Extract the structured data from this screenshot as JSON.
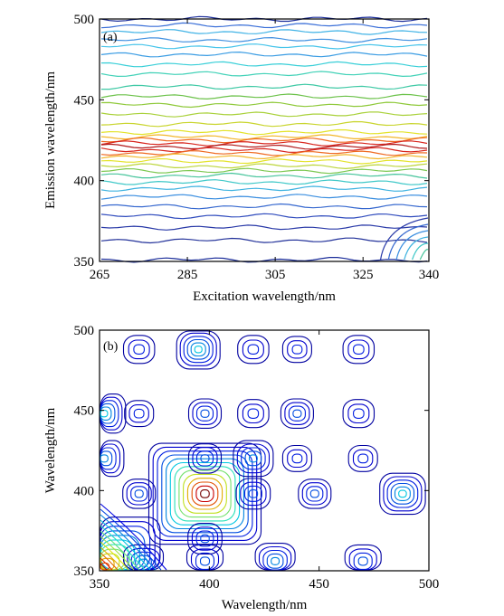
{
  "chart_data": [
    {
      "type": "contour",
      "panel_label": "(a)",
      "xlabel": "Excitation wavelength/nm",
      "ylabel": "Emission wavelength/nm",
      "xlim": [
        265,
        340
      ],
      "ylim": [
        350,
        500
      ],
      "xticks": [
        265,
        285,
        305,
        325,
        340
      ],
      "yticks": [
        350,
        400,
        450,
        500
      ],
      "colormap": "jet",
      "bands": [
        {
          "emission": 500,
          "level": 0.05,
          "color": "#1b2d9a"
        },
        {
          "emission": 496,
          "level": 0.12,
          "color": "#3a6fd8"
        },
        {
          "emission": 492,
          "level": 0.18,
          "color": "#41b3e6"
        },
        {
          "emission": 487,
          "level": 0.15,
          "color": "#3f8fe0"
        },
        {
          "emission": 483,
          "level": 0.22,
          "color": "#46c4ea"
        },
        {
          "emission": 478,
          "level": 0.18,
          "color": "#3a9ce3"
        },
        {
          "emission": 472,
          "level": 0.25,
          "color": "#39cfd8"
        },
        {
          "emission": 466,
          "level": 0.28,
          "color": "#43d2b8"
        },
        {
          "emission": 458,
          "level": 0.32,
          "color": "#3fc9a5"
        },
        {
          "emission": 452,
          "level": 0.38,
          "color": "#6cc24a"
        },
        {
          "emission": 447,
          "level": 0.45,
          "color": "#8fc93a"
        },
        {
          "emission": 441,
          "level": 0.48,
          "color": "#a9d13a"
        },
        {
          "emission": 435,
          "level": 0.55,
          "color": "#c9d52e"
        },
        {
          "emission": 430,
          "level": 0.62,
          "color": "#e3e32a"
        },
        {
          "emission": 427,
          "level": 0.72,
          "color": "#f2b62a"
        },
        {
          "emission": 425,
          "level": 0.85,
          "color": "#ef6a22"
        },
        {
          "emission": 423,
          "level": 0.95,
          "color": "#d8251d"
        },
        {
          "emission": 421,
          "level": 1.0,
          "color": "#b0181a"
        },
        {
          "emission": 419,
          "level": 0.95,
          "color": "#d8251d"
        },
        {
          "emission": 417,
          "level": 0.85,
          "color": "#ef6a22"
        },
        {
          "emission": 415,
          "level": 0.72,
          "color": "#f2b62a"
        },
        {
          "emission": 412,
          "level": 0.62,
          "color": "#e3e32a"
        },
        {
          "emission": 409,
          "level": 0.55,
          "color": "#bcd53a"
        },
        {
          "emission": 406,
          "level": 0.45,
          "color": "#7cc851"
        },
        {
          "emission": 403,
          "level": 0.38,
          "color": "#45c49a"
        },
        {
          "emission": 399,
          "level": 0.32,
          "color": "#3fc8c8"
        },
        {
          "emission": 395,
          "level": 0.28,
          "color": "#3fb3e0"
        },
        {
          "emission": 390,
          "level": 0.22,
          "color": "#3a8ee0"
        },
        {
          "emission": 384,
          "level": 0.18,
          "color": "#3668cf"
        },
        {
          "emission": 378,
          "level": 0.14,
          "color": "#2f4bbd"
        },
        {
          "emission": 371,
          "level": 0.1,
          "color": "#2a3aa8"
        },
        {
          "emission": 363,
          "level": 0.07,
          "color": "#23329a"
        },
        {
          "emission": 351,
          "level": 0.05,
          "color": "#1b2d9a"
        }
      ]
    },
    {
      "type": "contour",
      "panel_label": "(b)",
      "xlabel": "Wavelength/nm",
      "ylabel": "Wavelength/nm",
      "xlim": [
        350,
        500
      ],
      "ylim": [
        350,
        500
      ],
      "xticks": [
        350,
        400,
        450,
        500
      ],
      "yticks": [
        350,
        400,
        450,
        500
      ],
      "colormap": "jet",
      "peaks": [
        {
          "x": 398,
          "y": 398,
          "level": 1.0
        },
        {
          "x": 352,
          "y": 352,
          "level": 0.85
        },
        {
          "x": 395,
          "y": 488,
          "level": 0.35
        },
        {
          "x": 352,
          "y": 448,
          "level": 0.35
        },
        {
          "x": 352,
          "y": 420,
          "level": 0.3
        },
        {
          "x": 488,
          "y": 398,
          "level": 0.38
        },
        {
          "x": 420,
          "y": 420,
          "level": 0.3
        },
        {
          "x": 398,
          "y": 420,
          "level": 0.2
        },
        {
          "x": 398,
          "y": 448,
          "level": 0.2
        },
        {
          "x": 368,
          "y": 398,
          "level": 0.2
        },
        {
          "x": 420,
          "y": 398,
          "level": 0.22
        },
        {
          "x": 448,
          "y": 398,
          "level": 0.2
        },
        {
          "x": 430,
          "y": 356,
          "level": 0.3
        },
        {
          "x": 370,
          "y": 355,
          "level": 0.3
        },
        {
          "x": 398,
          "y": 356,
          "level": 0.25
        },
        {
          "x": 470,
          "y": 356,
          "level": 0.25
        },
        {
          "x": 440,
          "y": 448,
          "level": 0.2
        },
        {
          "x": 468,
          "y": 448,
          "level": 0.18
        },
        {
          "x": 468,
          "y": 488,
          "level": 0.18
        },
        {
          "x": 440,
          "y": 488,
          "level": 0.15
        },
        {
          "x": 368,
          "y": 488,
          "level": 0.18
        },
        {
          "x": 420,
          "y": 488,
          "level": 0.18
        },
        {
          "x": 368,
          "y": 448,
          "level": 0.15
        },
        {
          "x": 420,
          "y": 448,
          "level": 0.18
        },
        {
          "x": 398,
          "y": 370,
          "level": 0.22
        },
        {
          "x": 440,
          "y": 420,
          "level": 0.15
        },
        {
          "x": 470,
          "y": 420,
          "level": 0.15
        }
      ],
      "levels": [
        0.05,
        0.1,
        0.15,
        0.2,
        0.26,
        0.33,
        0.4,
        0.48,
        0.56,
        0.65,
        0.75,
        0.86,
        0.95
      ]
    }
  ]
}
